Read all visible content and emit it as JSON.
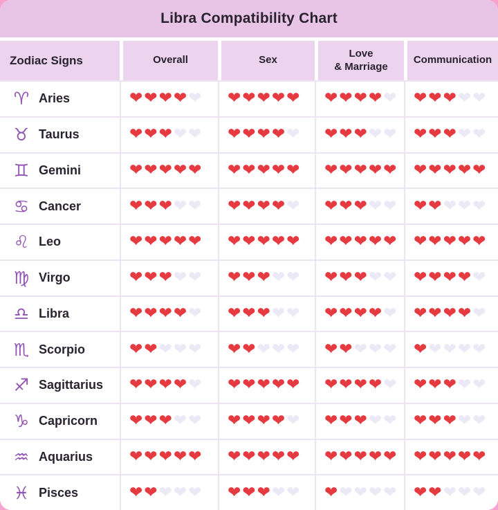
{
  "title": "Libra Compatibility Chart",
  "columns": [
    "Zodiac Signs",
    "Overall",
    "Sex",
    "Love\n& Marriage",
    "Communication"
  ],
  "heart_glyph": "❤",
  "max_hearts": 5,
  "rating_keys": [
    "overall",
    "sex",
    "love_marriage",
    "communication"
  ],
  "colors": {
    "background_pink": "#f7a3d0",
    "title_band": "#e8c5e6",
    "header_band": "#ecd4ee",
    "divider": "#ece4f3",
    "heart_filled": "#e63a41",
    "heart_empty": "#eae9f5",
    "zodiac_symbol": "#9253b5",
    "text_dark": "#29222f"
  },
  "chart_data": {
    "type": "table",
    "title": "Libra Compatibility Chart",
    "categories": [
      "Overall",
      "Sex",
      "Love & Marriage",
      "Communication"
    ],
    "rating_scale": {
      "min": 0,
      "max": 5,
      "unit": "hearts"
    },
    "rows": [
      {
        "sign": "Aries",
        "symbol": "♈",
        "ratings": {
          "overall": 4,
          "sex": 5,
          "love_marriage": 4,
          "communication": 3
        }
      },
      {
        "sign": "Taurus",
        "symbol": "♉",
        "ratings": {
          "overall": 3,
          "sex": 4,
          "love_marriage": 3,
          "communication": 3
        }
      },
      {
        "sign": "Gemini",
        "symbol": "♊",
        "ratings": {
          "overall": 5,
          "sex": 5,
          "love_marriage": 5,
          "communication": 5
        }
      },
      {
        "sign": "Cancer",
        "symbol": "♋",
        "ratings": {
          "overall": 3,
          "sex": 4,
          "love_marriage": 3,
          "communication": 2
        }
      },
      {
        "sign": "Leo",
        "symbol": "♌",
        "ratings": {
          "overall": 5,
          "sex": 5,
          "love_marriage": 5,
          "communication": 5
        }
      },
      {
        "sign": "Virgo",
        "symbol": "♍",
        "ratings": {
          "overall": 3,
          "sex": 3,
          "love_marriage": 3,
          "communication": 4
        }
      },
      {
        "sign": "Libra",
        "symbol": "♎",
        "ratings": {
          "overall": 4,
          "sex": 3,
          "love_marriage": 4,
          "communication": 4
        }
      },
      {
        "sign": "Scorpio",
        "symbol": "♏",
        "ratings": {
          "overall": 2,
          "sex": 2,
          "love_marriage": 2,
          "communication": 1
        }
      },
      {
        "sign": "Sagittarius",
        "symbol": "♐",
        "ratings": {
          "overall": 4,
          "sex": 5,
          "love_marriage": 4,
          "communication": 3
        }
      },
      {
        "sign": "Capricorn",
        "symbol": "♑",
        "ratings": {
          "overall": 3,
          "sex": 4,
          "love_marriage": 3,
          "communication": 3
        }
      },
      {
        "sign": "Aquarius",
        "symbol": "♒",
        "ratings": {
          "overall": 5,
          "sex": 5,
          "love_marriage": 5,
          "communication": 5
        }
      },
      {
        "sign": "Pisces",
        "symbol": "♓",
        "ratings": {
          "overall": 2,
          "sex": 3,
          "love_marriage": 1,
          "communication": 2
        }
      }
    ]
  }
}
